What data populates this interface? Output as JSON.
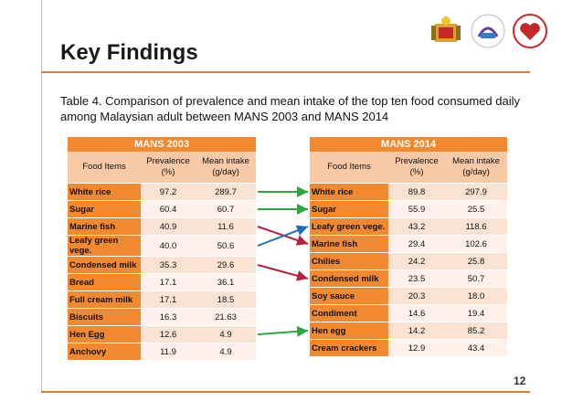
{
  "slide": {
    "title": "Key Findings",
    "caption": "Table 4. Comparison of prevalence and mean intake of the top ten food consumed daily among Malaysian adult between MANS 2003 and MANS 2014",
    "page_number": "12"
  },
  "colors": {
    "accent": "#f0892f",
    "arrow_same": "#2aa83a",
    "arrow_down": "#b3233c",
    "arrow_up": "#1f6fb5"
  },
  "table_2003": {
    "title": "MANS 2003",
    "col_item": "Food Items",
    "col_prev": "Prevalence (%)",
    "col_mean": "Mean intake (g/day)",
    "rows": [
      {
        "item": "White rice",
        "prev": "97.2",
        "mean": "289.7"
      },
      {
        "item": "Sugar",
        "prev": "60.4",
        "mean": "60.7"
      },
      {
        "item": "Marine fish",
        "prev": "40.9",
        "mean": "11.6"
      },
      {
        "item": "Leafy green vege.",
        "prev": "40.0",
        "mean": "50.6"
      },
      {
        "item": "Condensed milk",
        "prev": "35.3",
        "mean": "29.6"
      },
      {
        "item": "Bread",
        "prev": "17.1",
        "mean": "36.1"
      },
      {
        "item": "Full cream milk",
        "prev": "17.1",
        "mean": "18.5"
      },
      {
        "item": "Biscuits",
        "prev": "16.3",
        "mean": "21.63"
      },
      {
        "item": "Hen Egg",
        "prev": "12.6",
        "mean": "4.9"
      },
      {
        "item": "Anchovy",
        "prev": "11.9",
        "mean": "4.9"
      }
    ]
  },
  "table_2014": {
    "title": "MANS 2014",
    "col_item": "Food Items",
    "col_prev": "Prevalence (%)",
    "col_mean": "Mean intake (g/day)",
    "rows": [
      {
        "item": "White rice",
        "prev": "89.8",
        "mean": "297.9"
      },
      {
        "item": "Sugar",
        "prev": "55.9",
        "mean": "25.5"
      },
      {
        "item": "Leafy green vege.",
        "prev": "43.2",
        "mean": "118.6"
      },
      {
        "item": "Marine fish",
        "prev": "29.4",
        "mean": "102.6"
      },
      {
        "item": "Chilies",
        "prev": "24.2",
        "mean": "25.8"
      },
      {
        "item": "Condensed milk",
        "prev": "23.5",
        "mean": "50.7"
      },
      {
        "item": "Soy sauce",
        "prev": "20.3",
        "mean": "18.0"
      },
      {
        "item": "Condiment",
        "prev": "14.6",
        "mean": "19.4"
      },
      {
        "item": "Hen egg",
        "prev": "14.2",
        "mean": "85.2"
      },
      {
        "item": "Cream crackers",
        "prev": "12.9",
        "mean": "43.4"
      }
    ]
  },
  "links": [
    {
      "from": 0,
      "to": 0,
      "kind": "same"
    },
    {
      "from": 1,
      "to": 1,
      "kind": "same"
    },
    {
      "from": 2,
      "to": 3,
      "kind": "down"
    },
    {
      "from": 3,
      "to": 2,
      "kind": "up"
    },
    {
      "from": 4,
      "to": 5,
      "kind": "down"
    },
    {
      "from": 8,
      "to": 8,
      "kind": "same"
    }
  ]
}
